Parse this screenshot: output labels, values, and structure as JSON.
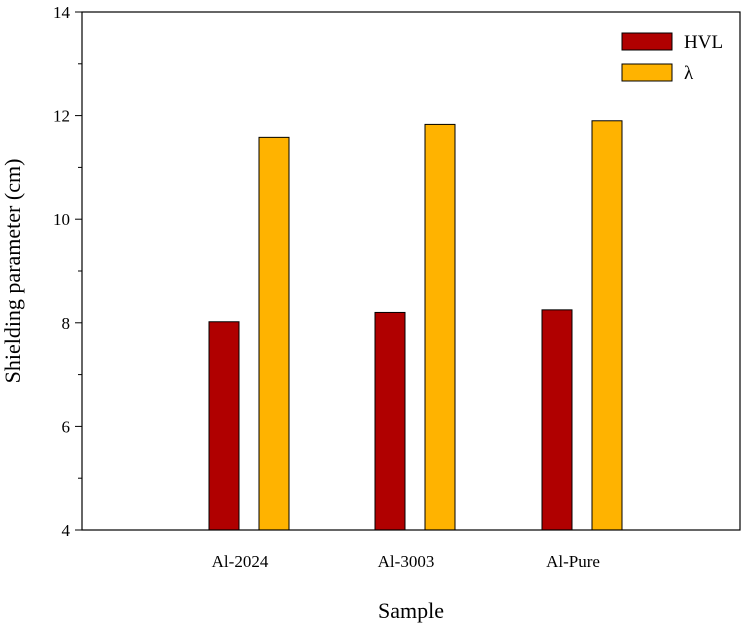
{
  "chart_data": {
    "type": "bar",
    "title": "",
    "xlabel": "Sample",
    "ylabel": "Shielding parameter (cm)",
    "categories": [
      "Al-2024",
      "Al-3003",
      "Al-Pure"
    ],
    "ylim": [
      4,
      14
    ],
    "yticks": [
      4,
      6,
      8,
      10,
      12,
      14
    ],
    "grid": false,
    "legend_position": "top-right",
    "series": [
      {
        "name": "HVL",
        "color": "#B00000",
        "values": [
          8.02,
          8.2,
          8.25
        ]
      },
      {
        "name": "λ",
        "color": "#FFB300",
        "values": [
          11.58,
          11.83,
          11.9
        ]
      }
    ]
  }
}
